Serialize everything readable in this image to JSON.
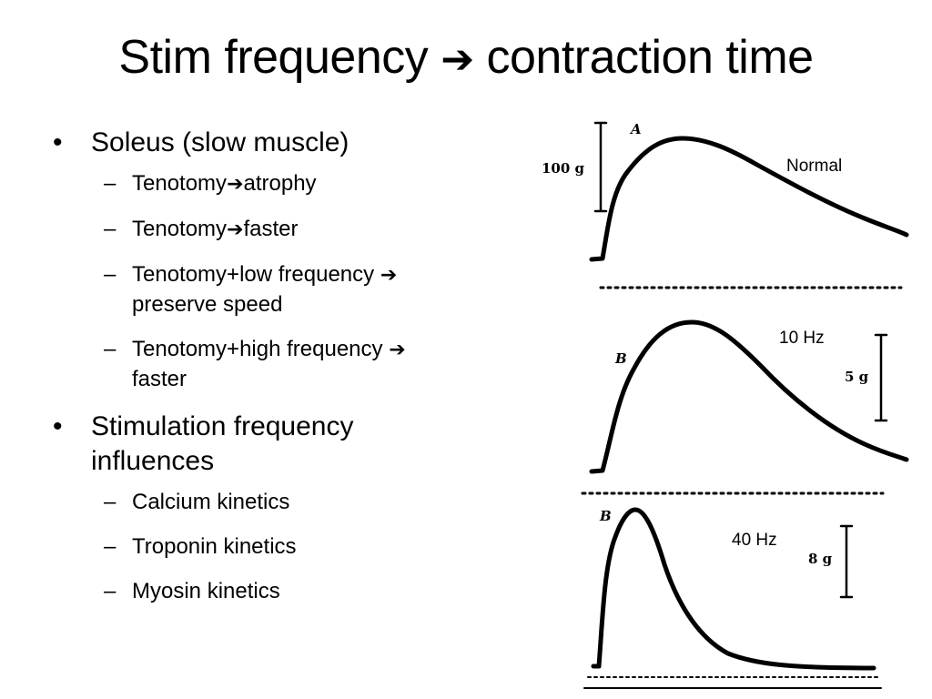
{
  "title_main": "Stim frequency ",
  "title_arrow": "➔",
  "title_tail": " contraction time",
  "bullets": {
    "b1": "Soleus (slow muscle)",
    "s1_a": "Tenotomy",
    "s1_b": "atrophy",
    "s2_a": "Tenotomy",
    "s2_b": "faster",
    "s3_a": "Tenotomy+low frequency ",
    "s3_b": "preserve speed",
    "s4_a": "Tenotomy+high frequency ",
    "s4_b": "faster",
    "b2": "Stimulation frequency influences",
    "s5": "Calcium kinetics",
    "s6": "Troponin kinetics",
    "s7": "Myosin kinetics"
  },
  "figure": {
    "panel_a": {
      "letter": "A",
      "label": "Normal",
      "scale": "100 g"
    },
    "panel_b1": {
      "letter": "B",
      "label": "10 Hz",
      "scale": "5 g"
    },
    "panel_b2": {
      "letter": "B",
      "label": "40 Hz",
      "scale": "8 g"
    }
  },
  "glyphs": {
    "bullet": "•",
    "dash": "–",
    "arrow": "➔"
  }
}
